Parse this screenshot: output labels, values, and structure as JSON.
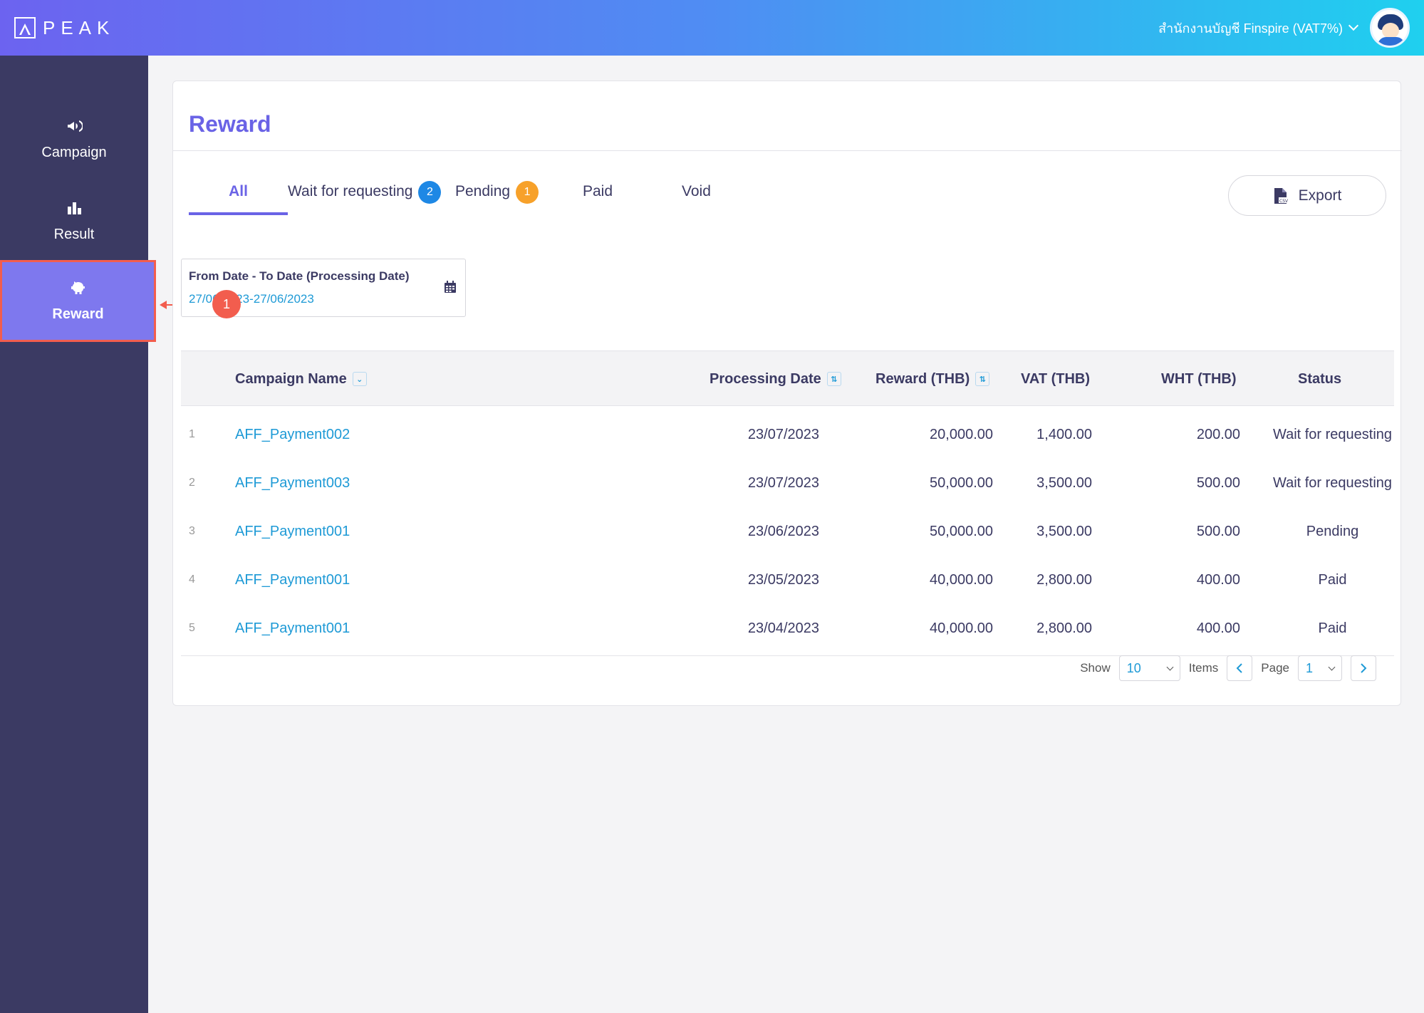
{
  "header": {
    "logo_text": "PEAK",
    "company_name": "สำนักงานบัญชี Finspire (VAT7%)"
  },
  "sidebar": {
    "items": [
      {
        "label": "Campaign",
        "icon": "megaphone-icon"
      },
      {
        "label": "Result",
        "icon": "bar-chart-icon"
      },
      {
        "label": "Reward",
        "icon": "piggy-bank-icon",
        "active": true
      }
    ]
  },
  "callout": {
    "number": "1"
  },
  "page": {
    "title": "Reward",
    "tabs": [
      {
        "label": "All",
        "active": true
      },
      {
        "label": "Wait for requesting",
        "badge": "2"
      },
      {
        "label": "Pending",
        "badge": "1"
      },
      {
        "label": "Paid"
      },
      {
        "label": "Void"
      }
    ],
    "export_label": "Export",
    "date_filter": {
      "label": "From Date - To Date (Processing Date)",
      "value": "27/06/2023-27/06/2023"
    }
  },
  "table": {
    "headers": {
      "campaign_name": "Campaign Name",
      "processing_date": "Processing Date",
      "reward": "Reward (THB)",
      "vat": "VAT (THB)",
      "wht": "WHT (THB)",
      "status": "Status"
    },
    "rows": [
      {
        "no": "1",
        "campaign": "AFF_Payment002",
        "date": "23/07/2023",
        "reward": "20,000.00",
        "vat": "1,400.00",
        "wht": "200.00",
        "status": "Wait for requesting"
      },
      {
        "no": "2",
        "campaign": "AFF_Payment003",
        "date": "23/07/2023",
        "reward": "50,000.00",
        "vat": "3,500.00",
        "wht": "500.00",
        "status": "Wait for requesting"
      },
      {
        "no": "3",
        "campaign": "AFF_Payment001",
        "date": "23/06/2023",
        "reward": "50,000.00",
        "vat": "3,500.00",
        "wht": "500.00",
        "status": "Pending"
      },
      {
        "no": "4",
        "campaign": "AFF_Payment001",
        "date": "23/05/2023",
        "reward": "40,000.00",
        "vat": "2,800.00",
        "wht": "400.00",
        "status": "Paid"
      },
      {
        "no": "5",
        "campaign": "AFF_Payment001",
        "date": "23/04/2023",
        "reward": "40,000.00",
        "vat": "2,800.00",
        "wht": "400.00",
        "status": "Paid"
      }
    ]
  },
  "pagination": {
    "show_label": "Show",
    "page_size": "10",
    "items_label": "Items",
    "page_label": "Page",
    "page_value": "1"
  },
  "colors": {
    "accent": "#6a63e6",
    "sidebar": "#3b3a63",
    "link": "#1e9ad6",
    "highlight": "#f25d4e"
  }
}
